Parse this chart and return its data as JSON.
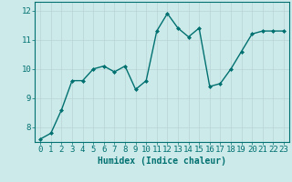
{
  "x": [
    0,
    1,
    2,
    3,
    4,
    5,
    6,
    7,
    8,
    9,
    10,
    11,
    12,
    13,
    14,
    15,
    16,
    17,
    18,
    19,
    20,
    21,
    22,
    23
  ],
  "y": [
    7.6,
    7.8,
    8.6,
    9.6,
    9.6,
    10.0,
    10.1,
    9.9,
    10.1,
    9.3,
    9.6,
    11.3,
    11.9,
    11.4,
    11.1,
    11.4,
    9.4,
    9.5,
    10.0,
    10.6,
    11.2,
    11.3,
    11.3,
    11.3
  ],
  "line_color": "#007070",
  "marker": "D",
  "marker_size": 2.0,
  "xlabel": "Humidex (Indice chaleur)",
  "xlabel_fontsize": 7,
  "ylim": [
    7.5,
    12.3
  ],
  "xlim": [
    -0.5,
    23.5
  ],
  "yticks": [
    8,
    9,
    10,
    11,
    12
  ],
  "xticks": [
    0,
    1,
    2,
    3,
    4,
    5,
    6,
    7,
    8,
    9,
    10,
    11,
    12,
    13,
    14,
    15,
    16,
    17,
    18,
    19,
    20,
    21,
    22,
    23
  ],
  "bg_color": "#cdeaea",
  "grid_color": "#b8d4d4",
  "tick_fontsize": 6.5,
  "line_width": 1.0
}
